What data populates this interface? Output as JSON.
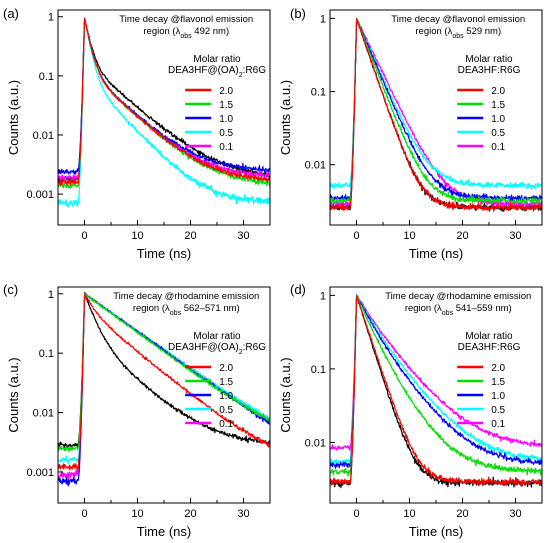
{
  "chart_data": [
    {
      "panel_label": "(a)",
      "type": "line",
      "y_scale": "log",
      "xlim": [
        -5,
        35
      ],
      "ylim": [
        0.0003,
        1.3
      ],
      "x_ticks": [
        0,
        10,
        20,
        30
      ],
      "x_tick_labels": [
        "0",
        "10",
        "20",
        "30"
      ],
      "y_ticks": [
        0.001,
        0.01,
        0.1,
        1
      ],
      "y_tick_labels": [
        "0.001",
        "0.01",
        "0.1",
        "1"
      ],
      "xlabel": "Time (ns)",
      "ylabel": "Counts (a.u.)",
      "annotation_lines": [
        "Time decay @flavonol emission",
        "region (λobs 492 nm)"
      ],
      "legend_title": [
        "Molar ratio",
        "DEA3HF@(OA)2:R6G"
      ],
      "legend_position": "right",
      "series": [
        {
          "name": "2.0",
          "color": "#ff0000",
          "peak_x": 0,
          "tail_components": [
            [
              0.83,
              0.9
            ],
            [
              0.13,
              5.2
            ]
          ],
          "baseline": 0.0016
        },
        {
          "name": "1.5",
          "color": "#00e000",
          "peak_x": 0,
          "tail_components": [
            [
              0.83,
              0.9
            ],
            [
              0.13,
              5.2
            ]
          ],
          "baseline": 0.0014
        },
        {
          "name": "1.0",
          "color": "#0000ff",
          "peak_x": 0,
          "tail_components": [
            [
              0.83,
              0.9
            ],
            [
              0.13,
              5.2
            ]
          ],
          "baseline": 0.0024
        },
        {
          "name": "0.5",
          "color": "#00ffff",
          "peak_x": 0,
          "tail_components": [
            [
              0.85,
              0.85
            ],
            [
              0.1,
              4.5
            ]
          ],
          "baseline": 0.0007
        },
        {
          "name": "0.1",
          "color": "#ff00ff",
          "peak_x": 0,
          "tail_components": [
            [
              0.83,
              0.9
            ],
            [
              0.13,
              5.2
            ]
          ],
          "baseline": 0.0019
        }
      ],
      "extra_series": [
        {
          "color": "#000000",
          "peak_x": 0,
          "tail_components": [
            [
              0.8,
              0.9
            ],
            [
              0.17,
              5.5
            ]
          ],
          "baseline": 0.0018
        }
      ]
    },
    {
      "panel_label": "(b)",
      "type": "line",
      "y_scale": "log",
      "xlim": [
        -5,
        35
      ],
      "ylim": [
        0.0015,
        1.3
      ],
      "x_ticks": [
        0,
        10,
        20,
        30
      ],
      "x_tick_labels": [
        "0",
        "10",
        "20",
        "30"
      ],
      "y_ticks": [
        0.01,
        0.1,
        1
      ],
      "y_tick_labels": [
        "0.01",
        "0.1",
        "1"
      ],
      "xlabel": "Time (ns)",
      "ylabel": "Counts (a.u.)",
      "annotation_lines": [
        "Time decay @flavonol emission",
        "region (λobs 529 nm)"
      ],
      "legend_title": [
        "Molar ratio",
        "DEA3HF:R6G"
      ],
      "legend_position": "right",
      "series": [
        {
          "name": "2.0",
          "color": "#ff0000",
          "peak_x": 0,
          "tail_components": [
            [
              1.0,
              2.05
            ]
          ],
          "baseline": 0.0026
        },
        {
          "name": "1.5",
          "color": "#00e000",
          "peak_x": 0,
          "tail_components": [
            [
              1.0,
              2.3
            ]
          ],
          "baseline": 0.0032
        },
        {
          "name": "1.0",
          "color": "#0000ff",
          "peak_x": 0,
          "tail_components": [
            [
              1.0,
              2.5
            ]
          ],
          "baseline": 0.0035
        },
        {
          "name": "0.5",
          "color": "#00ffff",
          "peak_x": 0,
          "tail_components": [
            [
              1.0,
              2.6
            ]
          ],
          "baseline": 0.0052
        },
        {
          "name": "0.1",
          "color": "#ff00ff",
          "peak_x": 0,
          "tail_components": [
            [
              1.0,
              2.85
            ]
          ],
          "baseline": 0.0029
        }
      ],
      "extra_series": [
        {
          "color": "#000000",
          "peak_x": 0,
          "tail_components": [
            [
              1.0,
              2.05
            ]
          ],
          "baseline": 0.0026
        }
      ]
    },
    {
      "panel_label": "(c)",
      "type": "line",
      "y_scale": "log",
      "xlim": [
        -5,
        35
      ],
      "ylim": [
        0.0003,
        1.3
      ],
      "x_ticks": [
        0,
        10,
        20,
        30
      ],
      "x_tick_labels": [
        "0",
        "10",
        "20",
        "30"
      ],
      "y_ticks": [
        0.001,
        0.01,
        0.1,
        1
      ],
      "y_tick_labels": [
        "0.001",
        "0.01",
        "0.1",
        "1"
      ],
      "xlabel": "Time (ns)",
      "ylabel": "Counts (a.u.)",
      "annotation_lines": [
        "Time decay @rhodamine emission",
        "region (λobs 562–571 nm)"
      ],
      "legend_title": [
        "Molar ratio",
        "DEA3HF@(OA)2:R6G"
      ],
      "legend_position": "right",
      "series": [
        {
          "name": "2.0",
          "color": "#ff0000",
          "peak_x": 0,
          "tail_components": [
            [
              0.45,
              1.6
            ],
            [
              0.55,
              6.0
            ]
          ],
          "baseline": 0.0012
        },
        {
          "name": "1.5",
          "color": "#00e000",
          "peak_x": 0,
          "tail_components": [
            [
              1.0,
              6.6
            ]
          ],
          "baseline": 0.0025
        },
        {
          "name": "1.0",
          "color": "#0000ff",
          "peak_x": 0,
          "tail_components": [
            [
              1.0,
              6.8
            ]
          ],
          "baseline": 0.0007
        },
        {
          "name": "0.5",
          "color": "#00ffff",
          "peak_x": 0,
          "tail_components": [
            [
              1.0,
              6.9
            ]
          ],
          "baseline": 0.0016
        },
        {
          "name": "0.1",
          "color": "#ff00ff",
          "peak_x": 0,
          "tail_components": [
            [
              1.0,
              6.9
            ]
          ],
          "baseline": 0.0009
        }
      ],
      "extra_series": [
        {
          "color": "#000000",
          "peak_x": 0,
          "tail_components": [
            [
              0.8,
              1.6
            ],
            [
              0.2,
              5.5
            ]
          ],
          "baseline": 0.0028
        }
      ]
    },
    {
      "panel_label": "(d)",
      "type": "line",
      "y_scale": "log",
      "xlim": [
        -5,
        35
      ],
      "ylim": [
        0.0015,
        1.3
      ],
      "x_ticks": [
        0,
        10,
        20,
        30
      ],
      "x_tick_labels": [
        "0",
        "10",
        "20",
        "30"
      ],
      "y_ticks": [
        0.01,
        0.1,
        1
      ],
      "y_tick_labels": [
        "0.01",
        "0.1",
        "1"
      ],
      "xlabel": "Time (ns)",
      "ylabel": "Counts (a.u.)",
      "annotation_lines": [
        "Time decay @rhodamine emission",
        "region (λobs 541–559 nm)"
      ],
      "legend_title": [
        "Molar ratio",
        "DEA3HF:R6G"
      ],
      "legend_position": "right",
      "series": [
        {
          "name": "2.0",
          "color": "#ff0000",
          "peak_x": 0,
          "tail_components": [
            [
              1.0,
              2.0
            ]
          ],
          "baseline": 0.0029
        },
        {
          "name": "1.5",
          "color": "#00e000",
          "peak_x": 0,
          "tail_components": [
            [
              0.7,
              2.3
            ],
            [
              0.3,
              4.2
            ]
          ],
          "baseline": 0.004
        },
        {
          "name": "1.0",
          "color": "#0000ff",
          "peak_x": 0,
          "tail_components": [
            [
              0.55,
              2.4
            ],
            [
              0.45,
              4.8
            ]
          ],
          "baseline": 0.005
        },
        {
          "name": "0.5",
          "color": "#00ffff",
          "peak_x": 0,
          "tail_components": [
            [
              0.5,
              2.5
            ],
            [
              0.5,
              5.0
            ]
          ],
          "baseline": 0.0055
        },
        {
          "name": "0.1",
          "color": "#ff00ff",
          "peak_x": 0,
          "tail_components": [
            [
              0.45,
              2.7
            ],
            [
              0.55,
              5.3
            ]
          ],
          "baseline": 0.0085
        }
      ],
      "extra_series": [
        {
          "color": "#000000",
          "peak_x": 0,
          "tail_components": [
            [
              1.0,
              1.9
            ]
          ],
          "baseline": 0.0028
        }
      ]
    }
  ]
}
